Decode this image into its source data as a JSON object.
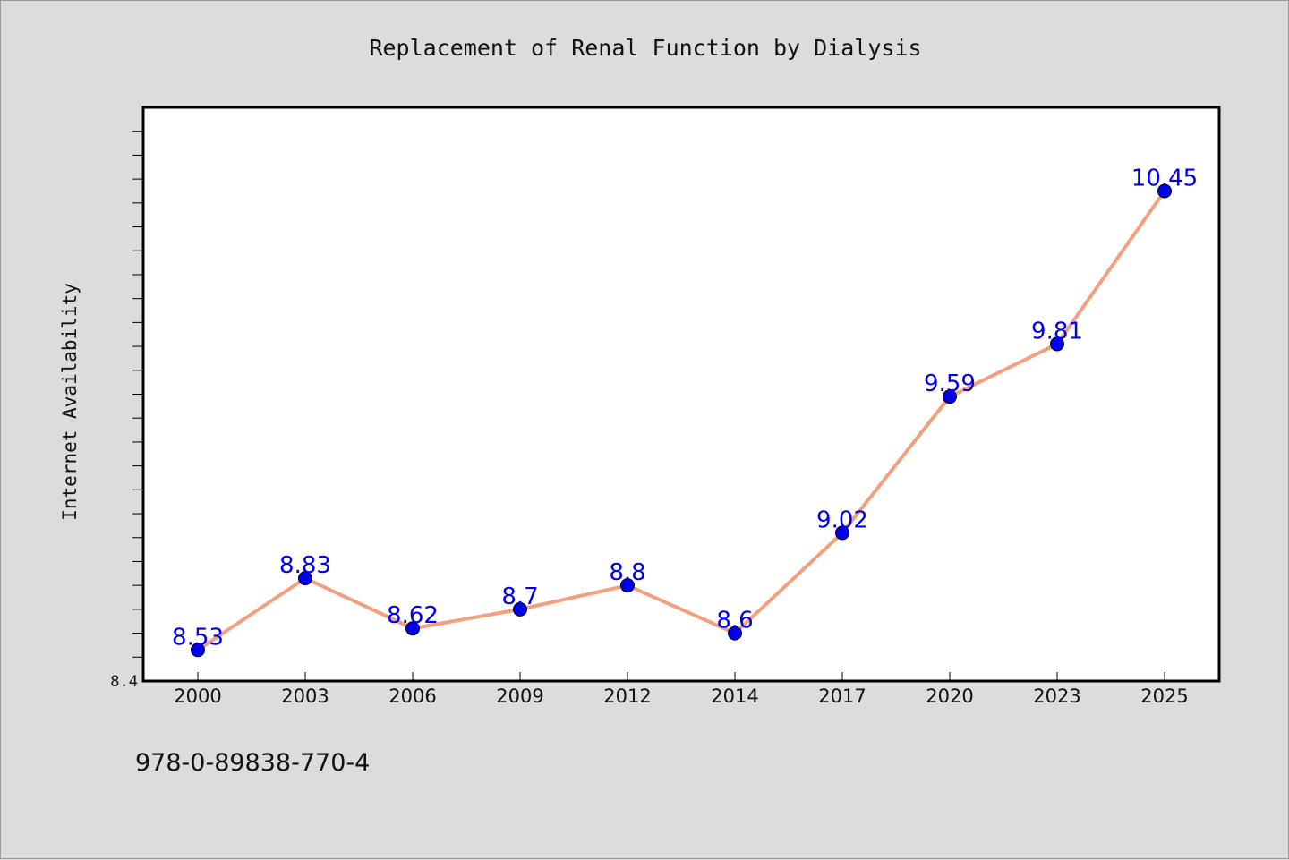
{
  "chart_data": {
    "type": "line",
    "title": "Replacement of Renal Function by Dialysis",
    "xlabel": "",
    "ylabel": "Internet Availability",
    "categories": [
      "2000",
      "2003",
      "2006",
      "2009",
      "2012",
      "2014",
      "2017",
      "2020",
      "2023",
      "2025"
    ],
    "series": [
      {
        "values": [
          8.53,
          8.83,
          8.62,
          8.7,
          8.8,
          8.6,
          9.02,
          9.59,
          9.81,
          10.45
        ],
        "labels": [
          "8.53",
          "8.83",
          "8.62",
          "8.7",
          "8.8",
          "8.6",
          "9.02",
          "9.59",
          "9.81",
          "10.45"
        ],
        "line_color": "#f4a07e",
        "marker_color": "#0000ee",
        "label_color": "#0000ee"
      }
    ],
    "ylim": [
      8.4,
      10.8
    ],
    "y_tick_labels": [
      "8.4"
    ],
    "grid": false,
    "legend": "none"
  },
  "footer": {
    "isbn": "978-0-89838-770-4"
  },
  "colors": {
    "background": "#dcdcdc",
    "plot_background": "#ffffff",
    "axis": "#000000"
  }
}
